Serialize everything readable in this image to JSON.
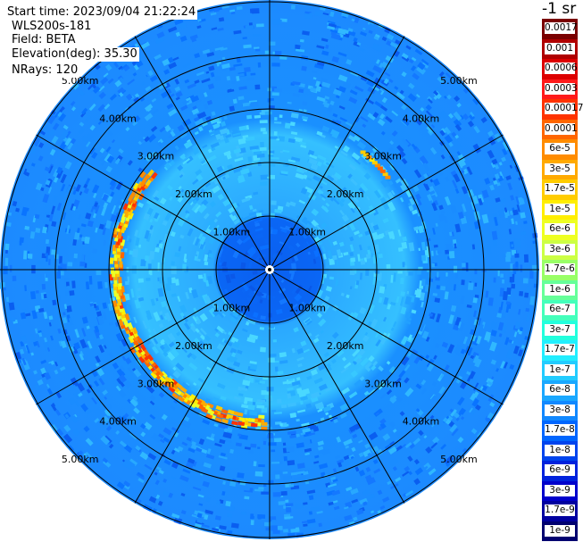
{
  "header": {
    "start_time": "Start time: 2023/09/04 21:22:24",
    "instrument": "WLS200s-181",
    "field": "Field: BETA",
    "elevation": "Elevation(deg): 35.30",
    "nrays": "NRays: 120"
  },
  "units_label": "-1 sr",
  "range_rings": {
    "labels": [
      "1.00km",
      "2.00km",
      "3.00km",
      "4.00km",
      "5.00km"
    ]
  },
  "colorbar": [
    {
      "label": "0.0017",
      "color": "#7a0000"
    },
    {
      "label": "0.001",
      "color": "#b00000"
    },
    {
      "label": "0.0006",
      "color": "#dd0000"
    },
    {
      "label": "0.0003",
      "color": "#ff1a1a"
    },
    {
      "label": "0.00017",
      "color": "#ff3300"
    },
    {
      "label": "0.0001",
      "color": "#ff6600"
    },
    {
      "label": "6e-5",
      "color": "#ff8c00"
    },
    {
      "label": "3e-5",
      "color": "#ffaa00"
    },
    {
      "label": "1.7e-5",
      "color": "#ffcc00"
    },
    {
      "label": "1e-5",
      "color": "#ffee00"
    },
    {
      "label": "6e-6",
      "color": "#eeff22"
    },
    {
      "label": "3e-6",
      "color": "#ccff44"
    },
    {
      "label": "1.7e-6",
      "color": "#99ff66"
    },
    {
      "label": "1e-6",
      "color": "#66ff99"
    },
    {
      "label": "6e-7",
      "color": "#44ffbb"
    },
    {
      "label": "3e-7",
      "color": "#22ffdd"
    },
    {
      "label": "1.7e-7",
      "color": "#22eeff"
    },
    {
      "label": "1e-7",
      "color": "#22ccff"
    },
    {
      "label": "6e-8",
      "color": "#1aa8ff"
    },
    {
      "label": "3e-8",
      "color": "#1188ff"
    },
    {
      "label": "1.7e-8",
      "color": "#0066ff"
    },
    {
      "label": "1e-8",
      "color": "#0044ee"
    },
    {
      "label": "6e-9",
      "color": "#0022dd"
    },
    {
      "label": "3e-9",
      "color": "#0000cc"
    },
    {
      "label": "1.7e-9",
      "color": "#0000a0"
    },
    {
      "label": "1e-9",
      "color": "#000070"
    }
  ],
  "colors": {
    "background_far": "#1a8cff",
    "inner_core": "#0a6eff",
    "mid_zone": "#33c8ff",
    "edge_band": "#ffcc00",
    "grid": "#000000"
  }
}
